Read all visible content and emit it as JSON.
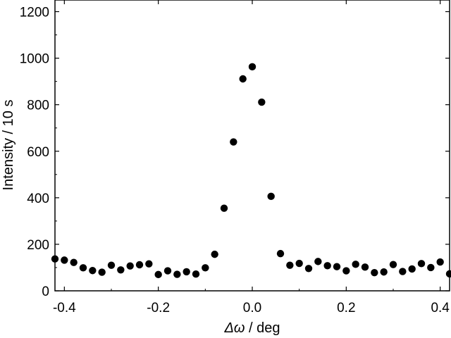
{
  "chart_data": {
    "type": "scatter",
    "title": "",
    "xlabel": "Δω / deg",
    "xlabel_symbol": "Δω",
    "xlabel_unit": " / deg",
    "ylabel": "Intensity / 10 s",
    "xlim": [
      -0.42,
      0.42
    ],
    "ylim": [
      0,
      1250
    ],
    "grid": false,
    "marker_color": "#000000",
    "x_ticks": [
      -0.4,
      -0.2,
      0.0,
      0.2,
      0.4
    ],
    "x_tick_labels": [
      "-0.4",
      "-0.2",
      "0.0",
      "0.2",
      "0.4"
    ],
    "y_ticks": [
      0,
      200,
      400,
      600,
      800,
      1000,
      1200
    ],
    "y_tick_labels": [
      "0",
      "200",
      "400",
      "600",
      "800",
      "1000",
      "1200"
    ],
    "series": [
      {
        "x": [
          -0.42,
          -0.4,
          -0.38,
          -0.36,
          -0.34,
          -0.32,
          -0.3,
          -0.28,
          -0.26,
          -0.24,
          -0.22,
          -0.2,
          -0.18,
          -0.16,
          -0.14,
          -0.12,
          -0.1,
          -0.08,
          -0.06,
          -0.04,
          -0.02,
          0.0,
          0.02,
          0.04,
          0.06,
          0.08,
          0.1,
          0.12,
          0.14,
          0.16,
          0.18,
          0.2,
          0.22,
          0.24,
          0.26,
          0.28,
          0.3,
          0.32,
          0.34,
          0.36,
          0.38,
          0.4,
          0.42
        ],
        "y": [
          137,
          132,
          122,
          99,
          87,
          80,
          110,
          90,
          107,
          112,
          116,
          70,
          86,
          71,
          82,
          72,
          99,
          157,
          355,
          640,
          911,
          963,
          811,
          406,
          160,
          110,
          118,
          96,
          126,
          108,
          104,
          86,
          114,
          102,
          78,
          81,
          113,
          83,
          94,
          117,
          100,
          124,
          73
        ]
      }
    ]
  }
}
